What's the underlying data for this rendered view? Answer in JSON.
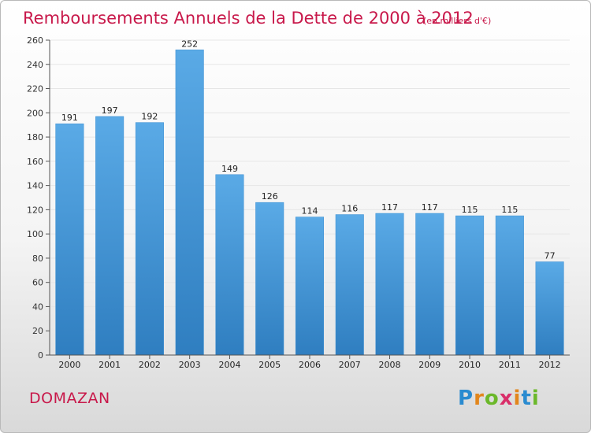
{
  "chart_data": {
    "type": "bar",
    "title": "Remboursements Annuels de la Dette de 2000 à 2012",
    "subtitle": "(en milliers d'€)",
    "categories": [
      "2000",
      "2001",
      "2002",
      "2003",
      "2004",
      "2005",
      "2006",
      "2007",
      "2008",
      "2009",
      "2010",
      "2011",
      "2012"
    ],
    "values": [
      191,
      197,
      192,
      252,
      149,
      126,
      114,
      116,
      117,
      117,
      115,
      115,
      77
    ],
    "ylim": [
      0,
      260
    ],
    "yticks": [
      0,
      20,
      40,
      60,
      80,
      100,
      120,
      140,
      160,
      180,
      200,
      220,
      240,
      260
    ],
    "grid": true,
    "bar_color": "#4f9fde",
    "bar_color_dark": "#2f7ec0"
  },
  "footer": {
    "town": "DOMAZAN",
    "logo_letters": [
      "P",
      "r",
      "o",
      "x",
      "i",
      "t",
      "i"
    ],
    "logo_colors": [
      "#2a8bd0",
      "#e2861c",
      "#6bb82a",
      "#d92f6a",
      "#e2861c",
      "#2a8bd0",
      "#6bb82a"
    ]
  }
}
